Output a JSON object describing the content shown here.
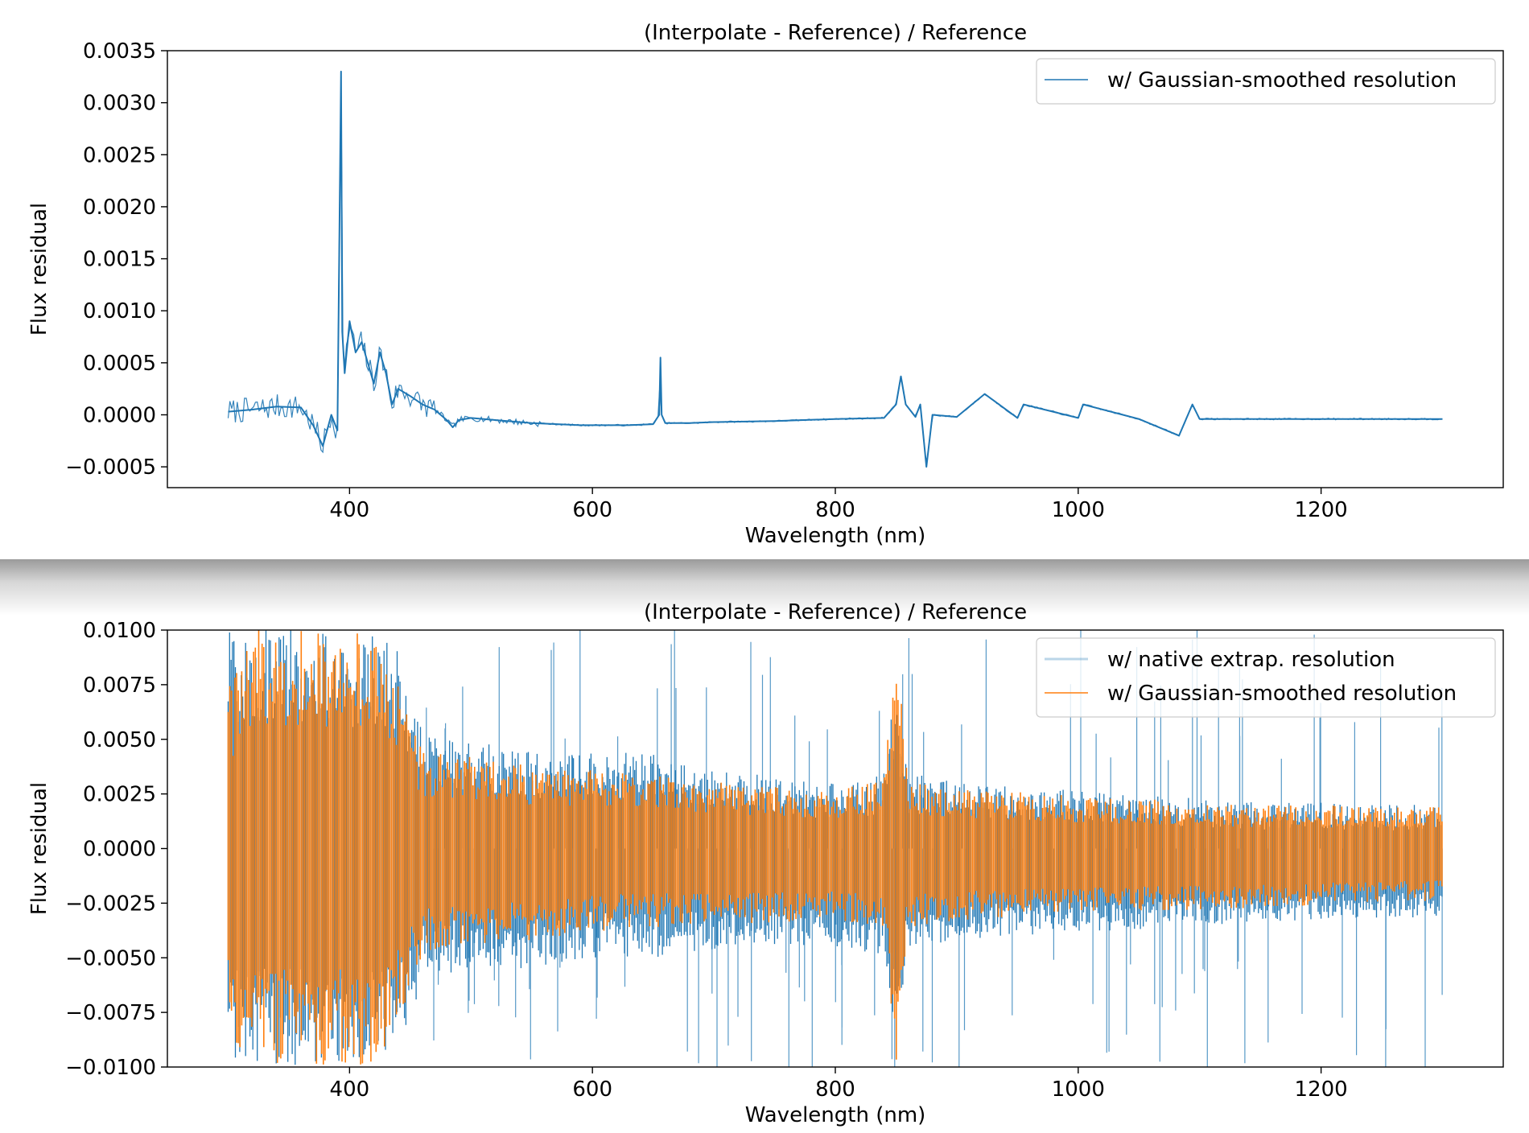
{
  "chart_data": [
    {
      "type": "line",
      "title": "(Interpolate - Reference) / Reference",
      "xlabel": "Wavelength (nm)",
      "ylabel": "Flux residual",
      "xlim": [
        250,
        1350
      ],
      "ylim": [
        -0.0007,
        0.0035
      ],
      "xticks": [
        400,
        600,
        800,
        1000,
        1200
      ],
      "xtick_labels": [
        "400",
        "600",
        "800",
        "1000",
        "1200"
      ],
      "yticks": [
        -0.0005,
        0.0,
        0.0005,
        0.001,
        0.0015,
        0.002,
        0.0025,
        0.003,
        0.0035
      ],
      "ytick_labels": [
        "−0.0005",
        "0.0000",
        "0.0005",
        "0.0010",
        "0.0015",
        "0.0020",
        "0.0025",
        "0.0030",
        "0.0035"
      ],
      "grid": false,
      "legend_position": "top-right",
      "series": [
        {
          "name": "w/ Gaussian-smoothed resolution",
          "color": "#1f77b4",
          "x": [
            300,
            320,
            340,
            360,
            370,
            378,
            385,
            390,
            393,
            394,
            396,
            400,
            405,
            410,
            415,
            420,
            425,
            430,
            435,
            440,
            450,
            460,
            470,
            480,
            485,
            490,
            500,
            520,
            550,
            590,
            600,
            630,
            650,
            655,
            656,
            657,
            660,
            680,
            700,
            750,
            800,
            840,
            850,
            854,
            858,
            866,
            870,
            875,
            880,
            900,
            923,
            950,
            955,
            1000,
            1004,
            1050,
            1083,
            1094,
            1100,
            1180,
            1200,
            1300
          ],
          "y": [
            3e-05,
            5e-05,
            8e-05,
            7e-05,
            -0.0001,
            -0.0003,
            0.0,
            -0.00015,
            0.0033,
            0.0008,
            0.0004,
            0.0009,
            0.0006,
            0.0007,
            0.0005,
            0.0003,
            0.0006,
            0.0004,
            0.0001,
            0.00025,
            0.00018,
            0.0001,
            5e-05,
            -5e-05,
            -0.00012,
            -5e-05,
            -3e-05,
            -5e-05,
            -8e-05,
            -0.0001,
            -0.0001,
            -0.0001,
            -9e-05,
            0.0,
            0.00055,
            0.0,
            -8e-05,
            -8e-05,
            -7e-05,
            -6e-05,
            -4e-05,
            -3e-05,
            0.0001,
            0.00037,
            0.0001,
            -2e-05,
            0.0001,
            -0.0005,
            0.0,
            -2e-05,
            0.0002,
            -3e-05,
            0.0001,
            -3e-05,
            0.0001,
            -4e-05,
            -0.0002,
            0.0001,
            -4e-05,
            -4e-05,
            -4e-05,
            -4e-05
          ]
        }
      ]
    },
    {
      "type": "line",
      "title": "(Interpolate - Reference) / Reference",
      "xlabel": "Wavelength (nm)",
      "ylabel": "Flux residual",
      "xlim": [
        250,
        1350
      ],
      "ylim": [
        -0.01,
        0.01
      ],
      "xticks": [
        400,
        600,
        800,
        1000,
        1200
      ],
      "xtick_labels": [
        "400",
        "600",
        "800",
        "1000",
        "1200"
      ],
      "yticks": [
        -0.01,
        -0.0075,
        -0.005,
        -0.0025,
        0.0,
        0.0025,
        0.005,
        0.0075,
        0.01
      ],
      "ytick_labels": [
        "−0.0100",
        "−0.0075",
        "−0.0050",
        "−0.0025",
        "0.0000",
        "0.0025",
        "0.0050",
        "0.0075",
        "0.0100"
      ],
      "grid": false,
      "legend_position": "top-right",
      "series": [
        {
          "name": "w/ native extrap. resolution",
          "color": "#1f77b4",
          "x": [
            300,
            320,
            340,
            360,
            380,
            400,
            420,
            440,
            460,
            500,
            550,
            600,
            650,
            700,
            750,
            800,
            840,
            850,
            860,
            900,
            950,
            1000,
            1050,
            1100,
            1150,
            1200,
            1250,
            1300
          ],
          "envelope_upper": [
            0.01,
            0.01,
            0.01,
            0.01,
            0.01,
            0.01,
            0.01,
            0.009,
            0.0055,
            0.005,
            0.0045,
            0.0045,
            0.0043,
            0.0036,
            0.0033,
            0.003,
            0.0035,
            0.0076,
            0.0034,
            0.0032,
            0.0028,
            0.0027,
            0.0025,
            0.0023,
            0.0021,
            0.0021,
            0.002,
            0.002
          ],
          "envelope_lower": [
            -0.01,
            -0.01,
            -0.01,
            -0.01,
            -0.01,
            -0.01,
            -0.01,
            -0.0095,
            -0.006,
            -0.0055,
            -0.0055,
            -0.005,
            -0.005,
            -0.0046,
            -0.0044,
            -0.0045,
            -0.005,
            -0.0085,
            -0.0047,
            -0.0042,
            -0.004,
            -0.0038,
            -0.0037,
            -0.0035,
            -0.0034,
            -0.0033,
            -0.0032,
            -0.0031
          ]
        },
        {
          "name": "w/ Gaussian-smoothed resolution",
          "color": "#ff7f0e",
          "x": [
            300,
            320,
            340,
            360,
            380,
            400,
            420,
            440,
            460,
            500,
            550,
            600,
            650,
            700,
            750,
            800,
            840,
            850,
            860,
            900,
            950,
            1000,
            1050,
            1100,
            1150,
            1200,
            1250,
            1300
          ],
          "envelope_upper": [
            0.0075,
            0.01,
            0.01,
            0.01,
            0.01,
            0.01,
            0.01,
            0.0075,
            0.0045,
            0.0042,
            0.0038,
            0.0036,
            0.0034,
            0.0031,
            0.0029,
            0.0027,
            0.0032,
            0.0095,
            0.003,
            0.0028,
            0.0026,
            0.0024,
            0.0023,
            0.0021,
            0.002,
            0.002,
            0.0019,
            0.0019
          ],
          "envelope_lower": [
            -0.0085,
            -0.01,
            -0.01,
            -0.01,
            -0.01,
            -0.01,
            -0.01,
            -0.008,
            -0.0048,
            -0.0044,
            -0.0042,
            -0.0038,
            -0.0036,
            -0.0035,
            -0.0034,
            -0.0033,
            -0.0036,
            -0.01,
            -0.0036,
            -0.0033,
            -0.0031,
            -0.003,
            -0.0029,
            -0.0028,
            -0.0027,
            -0.0026,
            -0.0025,
            -0.0024
          ]
        }
      ]
    }
  ]
}
